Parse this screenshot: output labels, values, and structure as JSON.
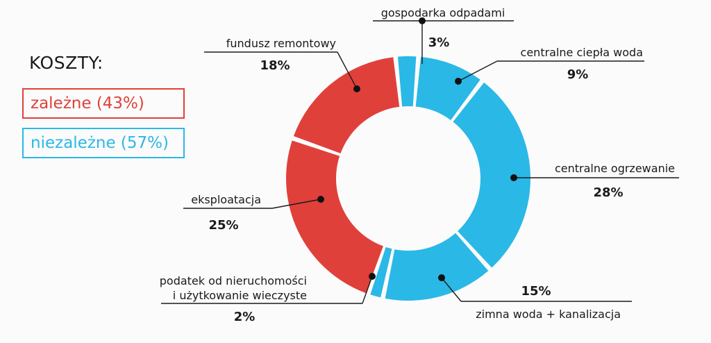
{
  "heading": "KOSZTY:",
  "legend": [
    {
      "label": "zależne (43%)",
      "color": "#e0403a"
    },
    {
      "label": "niezależne (57%)",
      "color": "#2ab8e6"
    }
  ],
  "chart_data": {
    "type": "pie",
    "variant": "donut",
    "unit": "%",
    "slices": [
      {
        "label": "gospodarka odpadami",
        "value": 3,
        "pct": "3%",
        "group": "niezależne",
        "color": "#2ab8e6"
      },
      {
        "label": "centralne ciepła woda",
        "value": 9,
        "pct": "9%",
        "group": "niezależne",
        "color": "#2ab8e6"
      },
      {
        "label": "centralne ogrzewanie",
        "value": 28,
        "pct": "28%",
        "group": "niezależne",
        "color": "#2ab8e6"
      },
      {
        "label": "zimna woda + kanalizacja",
        "value": 15,
        "pct": "15%",
        "group": "niezależne",
        "color": "#2ab8e6"
      },
      {
        "label": "podatek od nieruchomości\ni użytkowanie wieczyste",
        "value": 2,
        "pct": "2%",
        "group": "niezależne",
        "color": "#2ab8e6"
      },
      {
        "label": "eksploatacja",
        "value": 25,
        "pct": "25%",
        "group": "zależne",
        "color": "#e0403a"
      },
      {
        "label": "fundusz remontowy",
        "value": 18,
        "pct": "18%",
        "group": "zależne",
        "color": "#e0403a"
      }
    ]
  }
}
